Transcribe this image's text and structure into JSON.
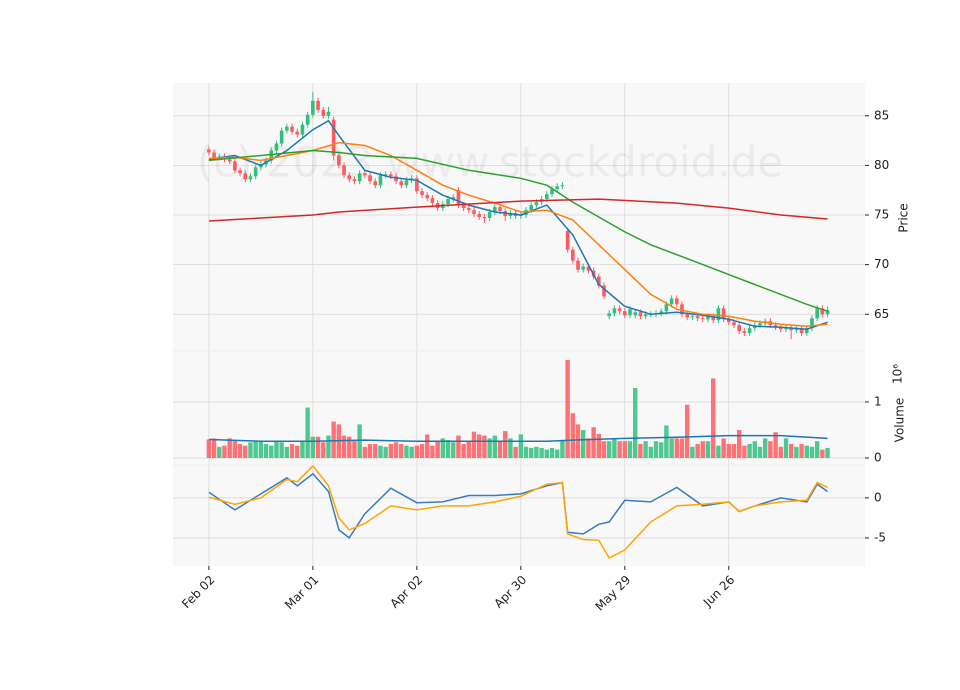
{
  "chart_data": [
    {
      "type": "candlestick",
      "ylabel": "Price",
      "watermark": "(c) 2023 www.stockdroid.de",
      "xlim": [
        -6.9,
        126.2
      ],
      "ylim": [
        61.3,
        88.3
      ],
      "yticks": [
        65,
        70,
        75,
        80,
        85
      ],
      "grid": true,
      "up_color": "#2fbf7f",
      "down_color": "#ff5a5f",
      "open": [
        81.6,
        81.3,
        80.8,
        80.9,
        80.6,
        80.4,
        79.5,
        79.2,
        78.6,
        78.9,
        79.8,
        80.1,
        80.5,
        81.5,
        82.2,
        83.5,
        83.9,
        83.4,
        83.1,
        84.1,
        85.1,
        86.5,
        85.6,
        85.0,
        84.6,
        81.0,
        80.0,
        79.0,
        78.6,
        78.4,
        79.2,
        79.0,
        78.4,
        78.0,
        79.0,
        79.1,
        78.9,
        78.4,
        78.0,
        78.5,
        78.7,
        77.4,
        77.0,
        76.7,
        76.2,
        75.7,
        76.1,
        76.6,
        77.5,
        76.0,
        75.7,
        75.5,
        75.1,
        74.8,
        74.7,
        75.3,
        75.8,
        75.4,
        74.9,
        75.2,
        74.9,
        75.0,
        75.5,
        76.0,
        76.3,
        76.6,
        77.1,
        77.6,
        77.9,
        73.4,
        71.5,
        70.4,
        69.5,
        69.8,
        69.4,
        68.8,
        67.9,
        64.8,
        65.1,
        65.6,
        65.3,
        64.9,
        64.9,
        65.2,
        64.8,
        65.0,
        65.0,
        65.1,
        65.3,
        66.0,
        66.6,
        66.0,
        65.0,
        64.7,
        64.8,
        64.6,
        64.5,
        64.8,
        64.4,
        65.6,
        64.5,
        64.2,
        63.9,
        63.3,
        63.1,
        63.6,
        63.9,
        64.1,
        64.3,
        63.9,
        63.7,
        63.5,
        63.6,
        63.4,
        63.5,
        63.1,
        63.6,
        64.6,
        65.6,
        65.0
      ],
      "high": [
        81.9,
        81.6,
        81.2,
        81.2,
        80.9,
        80.7,
        79.8,
        79.5,
        79.2,
        80.1,
        80.4,
        80.8,
        81.8,
        82.5,
        83.8,
        84.2,
        84.2,
        83.7,
        84.4,
        85.4,
        87.4,
        86.8,
        85.9,
        85.9,
        84.9,
        81.3,
        80.3,
        79.3,
        78.9,
        79.5,
        79.5,
        79.3,
        78.7,
        79.3,
        79.4,
        79.4,
        79.2,
        78.7,
        78.8,
        79.0,
        79.0,
        77.7,
        77.3,
        77.0,
        76.5,
        76.4,
        76.9,
        77.1,
        77.8,
        76.3,
        76.0,
        75.8,
        75.4,
        75.1,
        75.6,
        76.1,
        76.1,
        75.7,
        75.5,
        75.5,
        75.3,
        75.8,
        76.3,
        76.6,
        76.9,
        77.4,
        77.9,
        78.2,
        78.3,
        73.7,
        71.8,
        70.7,
        70.1,
        70.1,
        69.7,
        69.1,
        68.2,
        65.4,
        65.9,
        65.9,
        65.6,
        65.8,
        65.5,
        65.5,
        65.3,
        65.3,
        65.4,
        65.6,
        66.3,
        66.9,
        66.9,
        66.3,
        65.3,
        65.1,
        65.1,
        64.9,
        65.1,
        65.1,
        65.9,
        65.9,
        64.8,
        64.5,
        64.2,
        63.6,
        63.9,
        64.2,
        64.4,
        64.6,
        64.6,
        64.2,
        64.0,
        63.9,
        63.9,
        63.8,
        63.8,
        63.9,
        64.9,
        65.9,
        65.9,
        65.8
      ],
      "low": [
        81.0,
        80.5,
        80.5,
        80.3,
        80.1,
        79.2,
        78.9,
        78.3,
        78.3,
        78.6,
        79.5,
        79.8,
        80.2,
        81.2,
        81.9,
        83.2,
        83.1,
        82.8,
        82.8,
        83.8,
        84.8,
        85.3,
        84.7,
        84.7,
        80.5,
        79.7,
        78.7,
        78.3,
        78.1,
        78.1,
        78.7,
        78.1,
        77.7,
        77.7,
        78.7,
        78.6,
        78.1,
        77.7,
        77.7,
        78.2,
        77.1,
        76.7,
        76.4,
        75.9,
        75.4,
        75.4,
        75.8,
        76.3,
        75.7,
        75.4,
        75.2,
        74.8,
        74.5,
        74.2,
        74.4,
        75.0,
        75.1,
        74.4,
        74.6,
        74.6,
        74.6,
        74.7,
        75.2,
        75.7,
        76.0,
        76.3,
        76.8,
        77.3,
        77.6,
        71.2,
        70.1,
        69.2,
        69.2,
        69.1,
        68.5,
        67.6,
        66.5,
        64.5,
        64.8,
        65.0,
        64.6,
        64.6,
        64.6,
        64.5,
        64.5,
        64.7,
        64.7,
        64.8,
        65.0,
        65.7,
        65.7,
        64.7,
        64.4,
        64.4,
        64.3,
        64.2,
        64.2,
        64.1,
        64.1,
        64.2,
        63.9,
        63.6,
        63.0,
        62.8,
        62.8,
        63.3,
        63.6,
        63.8,
        63.6,
        63.4,
        63.2,
        63.2,
        62.5,
        63.1,
        62.8,
        62.8,
        63.3,
        64.3,
        64.7,
        64.7
      ],
      "close": [
        81.3,
        80.8,
        80.9,
        80.6,
        80.4,
        79.5,
        79.2,
        78.6,
        78.9,
        79.8,
        80.1,
        80.5,
        81.5,
        82.2,
        83.5,
        83.9,
        83.4,
        83.1,
        84.1,
        85.1,
        86.5,
        85.6,
        85.0,
        85.4,
        81.0,
        80.0,
        79.0,
        78.6,
        78.4,
        79.2,
        79.0,
        78.4,
        78.0,
        79.0,
        79.1,
        78.9,
        78.4,
        78.0,
        78.5,
        78.7,
        77.4,
        77.0,
        76.7,
        76.2,
        75.7,
        76.1,
        76.6,
        76.8,
        76.0,
        75.7,
        75.5,
        75.1,
        74.8,
        74.7,
        75.3,
        75.8,
        75.4,
        74.9,
        75.2,
        74.9,
        75.0,
        75.5,
        76.0,
        76.3,
        76.6,
        77.1,
        77.6,
        77.9,
        78.0,
        71.5,
        70.4,
        69.5,
        69.8,
        69.4,
        68.8,
        67.9,
        66.8,
        65.1,
        65.6,
        65.3,
        64.9,
        65.5,
        65.2,
        64.8,
        65.0,
        65.0,
        65.1,
        65.3,
        66.0,
        66.6,
        66.0,
        65.0,
        64.7,
        64.8,
        64.6,
        64.5,
        64.8,
        64.4,
        65.6,
        64.5,
        64.2,
        63.9,
        63.3,
        63.1,
        63.6,
        63.9,
        64.1,
        64.3,
        63.9,
        63.7,
        63.5,
        63.6,
        63.4,
        63.5,
        63.1,
        63.6,
        64.6,
        65.6,
        65.0,
        65.4
      ],
      "series": [
        {
          "color": "#1f77b4",
          "x": [
            0,
            5,
            10,
            15,
            20,
            23,
            25,
            30,
            35,
            40,
            45,
            50,
            55,
            60,
            65,
            70,
            75,
            80,
            85,
            90,
            95,
            100,
            105,
            110,
            115,
            119
          ],
          "values": [
            80.6,
            81.0,
            80.0,
            81.5,
            83.6,
            84.5,
            83.0,
            79.5,
            78.8,
            78.5,
            77.0,
            76.0,
            75.3,
            75.0,
            76.0,
            73.0,
            68.0,
            65.8,
            65.0,
            65.2,
            64.9,
            64.5,
            63.8,
            63.7,
            63.5,
            64.2
          ]
        },
        {
          "color": "#ff7f0e",
          "x": [
            0,
            5,
            10,
            15,
            20,
            25,
            30,
            35,
            40,
            45,
            50,
            55,
            60,
            65,
            70,
            75,
            80,
            85,
            90,
            95,
            100,
            105,
            110,
            115,
            119
          ],
          "values": [
            80.7,
            80.8,
            80.5,
            81.0,
            81.5,
            82.3,
            82.0,
            81.0,
            79.5,
            78.0,
            77.0,
            76.2,
            75.3,
            75.5,
            74.5,
            72.0,
            69.5,
            67.0,
            65.5,
            65.0,
            64.8,
            64.3,
            64.0,
            63.8,
            64.0
          ]
        },
        {
          "color": "#2ca02c",
          "x": [
            0,
            10,
            20,
            25,
            30,
            40,
            50,
            60,
            65,
            70,
            75,
            80,
            85,
            90,
            95,
            100,
            105,
            110,
            115,
            119
          ],
          "values": [
            80.5,
            81.0,
            81.5,
            81.3,
            81.0,
            80.7,
            79.5,
            78.7,
            78.0,
            76.3,
            74.8,
            73.3,
            72.0,
            71.0,
            70.0,
            69.0,
            68.0,
            67.0,
            66.0,
            65.3
          ]
        },
        {
          "color": "#d62728",
          "x": [
            0,
            20,
            25,
            40,
            60,
            75,
            90,
            100,
            110,
            119
          ],
          "values": [
            74.4,
            75.0,
            75.3,
            75.8,
            76.4,
            76.6,
            76.2,
            75.7,
            75.0,
            74.6
          ]
        }
      ]
    },
    {
      "type": "bar",
      "ylabel": "Volume",
      "offset_label": "10⁶",
      "xlim": [
        -6.9,
        126.2
      ],
      "ylim": [
        -0.125,
        1.91
      ],
      "yticks": [
        0,
        1
      ],
      "grid": true,
      "values": [
        0.33,
        0.35,
        0.2,
        0.22,
        0.35,
        0.3,
        0.25,
        0.22,
        0.28,
        0.3,
        0.3,
        0.25,
        0.22,
        0.3,
        0.28,
        0.2,
        0.25,
        0.22,
        0.3,
        0.9,
        0.38,
        0.38,
        0.28,
        0.4,
        0.65,
        0.6,
        0.4,
        0.38,
        0.3,
        0.6,
        0.2,
        0.25,
        0.25,
        0.22,
        0.2,
        0.25,
        0.28,
        0.25,
        0.22,
        0.2,
        0.22,
        0.25,
        0.42,
        0.22,
        0.3,
        0.35,
        0.32,
        0.28,
        0.4,
        0.25,
        0.3,
        0.47,
        0.42,
        0.4,
        0.35,
        0.4,
        0.3,
        0.48,
        0.35,
        0.2,
        0.42,
        0.2,
        0.18,
        0.2,
        0.18,
        0.15,
        0.18,
        0.15,
        0.32,
        1.75,
        0.8,
        0.6,
        0.5,
        0.35,
        0.55,
        0.43,
        0.3,
        0.3,
        0.35,
        0.3,
        0.3,
        0.3,
        1.25,
        0.25,
        0.3,
        0.2,
        0.3,
        0.28,
        0.58,
        0.35,
        0.35,
        0.35,
        0.95,
        0.2,
        0.25,
        0.3,
        0.3,
        1.42,
        0.22,
        0.35,
        0.25,
        0.25,
        0.5,
        0.22,
        0.25,
        0.3,
        0.2,
        0.35,
        0.3,
        0.46,
        0.2,
        0.35,
        0.25,
        0.2,
        0.25,
        0.22,
        0.2,
        0.3,
        0.15,
        0.18
      ],
      "series": [
        {
          "color": "#1f77b4",
          "x": [
            0,
            10,
            20,
            30,
            40,
            50,
            60,
            65,
            70,
            80,
            90,
            100,
            110,
            119
          ],
          "values": [
            0.33,
            0.3,
            0.3,
            0.32,
            0.3,
            0.3,
            0.3,
            0.3,
            0.32,
            0.35,
            0.37,
            0.4,
            0.4,
            0.35
          ]
        }
      ]
    },
    {
      "type": "line",
      "xlim": [
        -6.9,
        126.2
      ],
      "ylim": [
        -8.5,
        4.1
      ],
      "yticks": [
        -5,
        0
      ],
      "grid": true,
      "xticks": [
        {
          "value": 0,
          "label": "Feb 02"
        },
        {
          "value": 20,
          "label": "Mar 01"
        },
        {
          "value": 40,
          "label": "Apr 02"
        },
        {
          "value": 60,
          "label": "Apr 30"
        },
        {
          "value": 80,
          "label": "May 29"
        },
        {
          "value": 100,
          "label": "Jun 26"
        }
      ],
      "series": [
        {
          "color": "#3b7bbf",
          "x": [
            0,
            5,
            10,
            15,
            17,
            20,
            23,
            25,
            27,
            30,
            35,
            40,
            45,
            50,
            55,
            60,
            65,
            68,
            69,
            72,
            75,
            77,
            80,
            85,
            90,
            95,
            100,
            102,
            105,
            110,
            115,
            117,
            119
          ],
          "values": [
            0.7,
            -1.5,
            0.5,
            2.5,
            1.5,
            3.0,
            0.8,
            -4.0,
            -5.0,
            -2.0,
            1.2,
            -0.6,
            -0.5,
            0.3,
            0.3,
            0.5,
            1.5,
            1.9,
            -4.3,
            -4.5,
            -3.3,
            -3.0,
            -0.3,
            -0.5,
            1.3,
            -1.0,
            -0.5,
            -1.7,
            -1.0,
            0.0,
            -0.5,
            1.7,
            0.8
          ]
        },
        {
          "color": "#ffa500",
          "x": [
            0,
            5,
            10,
            15,
            17,
            20,
            23,
            25,
            27,
            30,
            35,
            40,
            45,
            50,
            55,
            60,
            65,
            68,
            69,
            72,
            75,
            77,
            80,
            85,
            90,
            95,
            100,
            102,
            105,
            110,
            115,
            117,
            119
          ],
          "values": [
            0.1,
            -0.8,
            0.0,
            2.3,
            2.0,
            4.0,
            1.5,
            -2.5,
            -4.0,
            -3.2,
            -1.0,
            -1.5,
            -1.0,
            -1.0,
            -0.5,
            0.2,
            1.7,
            1.9,
            -4.5,
            -5.2,
            -5.3,
            -7.5,
            -6.5,
            -3.0,
            -1.0,
            -0.8,
            -0.5,
            -1.7,
            -1.0,
            -0.5,
            -0.3,
            1.9,
            1.3
          ]
        }
      ]
    }
  ]
}
